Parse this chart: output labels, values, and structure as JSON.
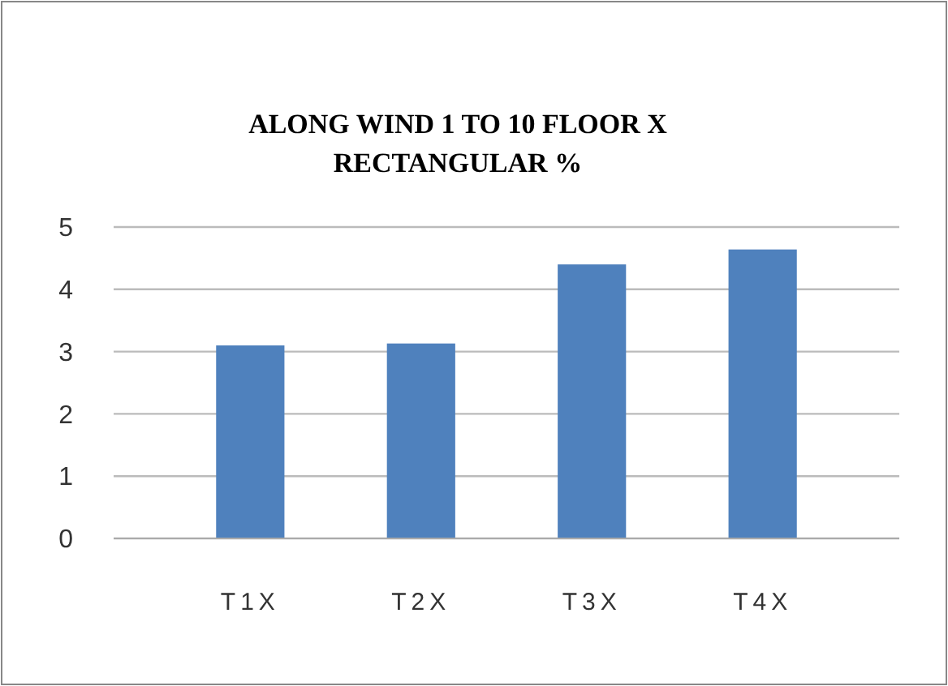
{
  "chart_data": {
    "type": "bar",
    "title": "ALONG WIND 1 TO 10 FLOOR X RECTANGULAR %",
    "categories": [
      "T1X",
      "T2X",
      "T3X",
      "T4X"
    ],
    "values": [
      3.1,
      3.13,
      4.4,
      4.64
    ],
    "color": "#4f81bd",
    "ylim": [
      0,
      5
    ],
    "yticks": [
      0,
      1,
      2,
      3,
      4,
      5
    ],
    "grid": "y"
  }
}
